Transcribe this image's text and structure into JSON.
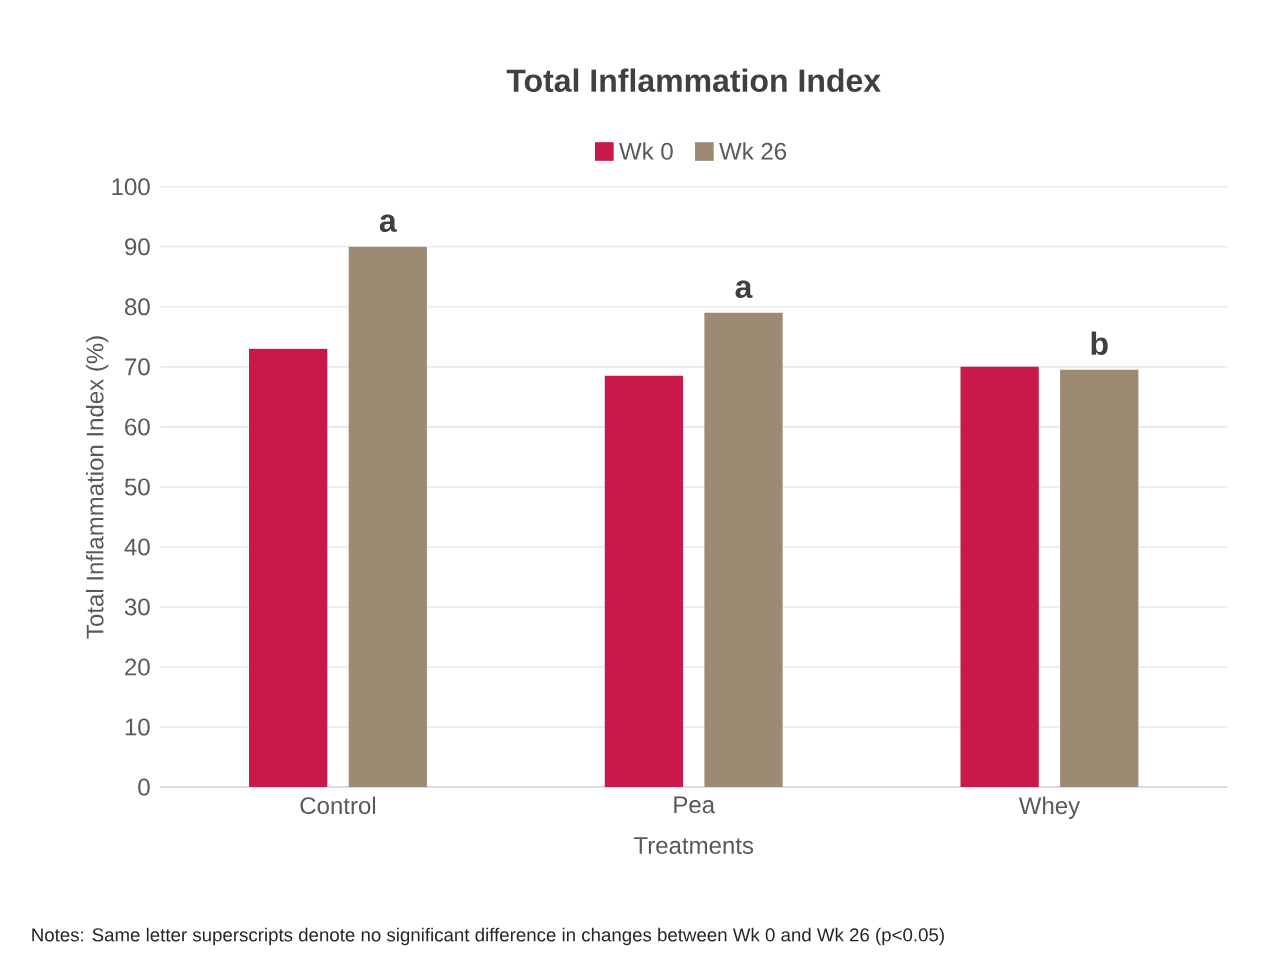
{
  "chart_data": {
    "type": "bar",
    "title": "Total Inflammation Index",
    "xlabel": "Treatments",
    "ylabel": "Total Inflammation Index (%)",
    "categories": [
      "Control",
      "Pea",
      "Whey"
    ],
    "series": [
      {
        "name": "Wk 0",
        "color": "#c8194a",
        "values": [
          73,
          68.5,
          70
        ]
      },
      {
        "name": "Wk 26",
        "color": "#9c8a72",
        "values": [
          90,
          79,
          69.5
        ]
      }
    ],
    "ylim": [
      0,
      100
    ],
    "yticks": [
      0,
      10,
      20,
      30,
      40,
      50,
      60,
      70,
      80,
      90,
      100
    ],
    "grid": "y",
    "legend": "top",
    "annotations": [
      "a",
      "a",
      "b",
      "Notes: Same letter superscripts denote no significant difference in changes between Wk 0 and Wk 26 (p<0.05)"
    ]
  }
}
